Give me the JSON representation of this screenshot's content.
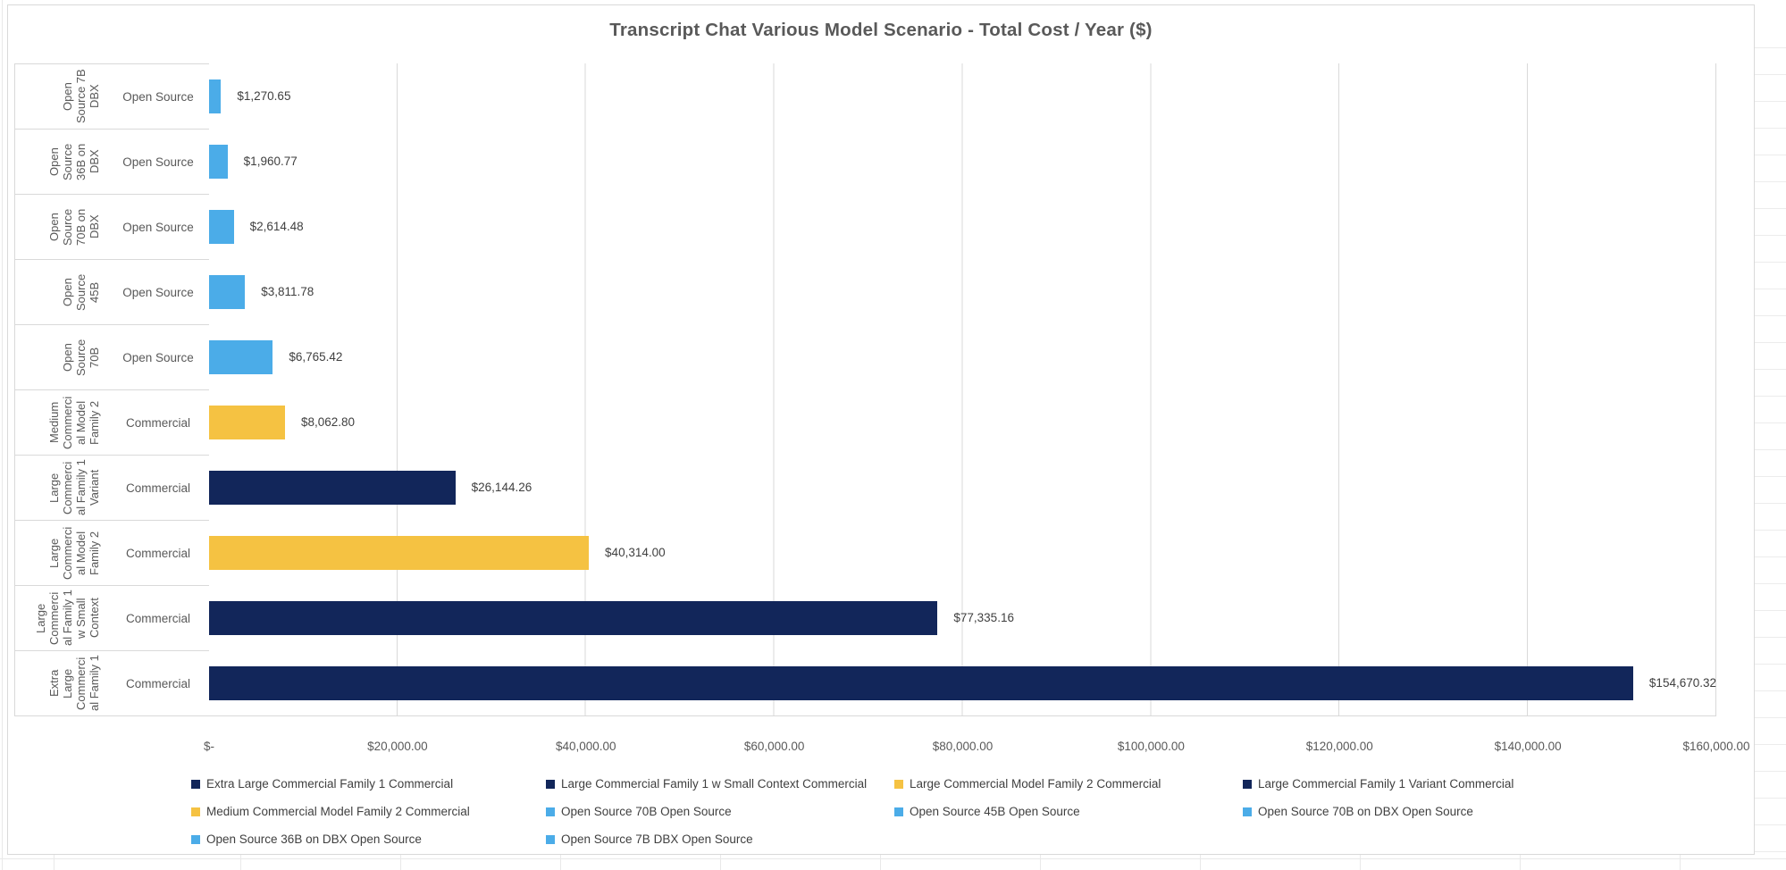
{
  "colors": {
    "navy": "#12265A",
    "gold": "#F5C242",
    "blue": "#4BACE8",
    "plot_grid": "#D9D9D9",
    "worksheet_grid": "#E9E9E9",
    "axis_text": "#595959",
    "value_text": "#3F3F3F"
  },
  "chart_data": {
    "type": "bar",
    "orientation": "horizontal",
    "title": "Transcript Chat Various Model Scenario  - Total Cost / Year ($)",
    "grid": true,
    "legend_position": "bottom",
    "axis": {
      "min": 0,
      "max": 160000,
      "step": 20000,
      "tick_labels": [
        "$-",
        "$20,000.00",
        "$40,000.00",
        "$60,000.00",
        "$80,000.00",
        "$100,000.00",
        "$120,000.00",
        "$140,000.00",
        "$160,000.00"
      ]
    },
    "rows": [
      {
        "model": "Open Source 7B DBX",
        "group": "Open Source",
        "value": 1270.65,
        "value_label": "$1,270.65",
        "color": "#4BACE8"
      },
      {
        "model": "Open Source 36B on DBX",
        "group": "Open Source",
        "value": 1960.77,
        "value_label": "$1,960.77",
        "color": "#4BACE8"
      },
      {
        "model": "Open Source 70B on DBX",
        "group": "Open Source",
        "value": 2614.48,
        "value_label": "$2,614.48",
        "color": "#4BACE8"
      },
      {
        "model": "Open Source 45B",
        "group": "Open Source",
        "value": 3811.78,
        "value_label": "$3,811.78",
        "color": "#4BACE8"
      },
      {
        "model": "Open Source 70B",
        "group": "Open Source",
        "value": 6765.42,
        "value_label": "$6,765.42",
        "color": "#4BACE8"
      },
      {
        "model": "Medium Commercial Model Family 2",
        "group": "Commercial",
        "value": 8062.8,
        "value_label": "$8,062.80",
        "color": "#F5C242"
      },
      {
        "model": "Large Commercial Family 1 Variant",
        "group": "Commercial",
        "value": 26144.26,
        "value_label": "$26,144.26",
        "color": "#12265A"
      },
      {
        "model": "Large Commercial Model Family 2",
        "group": "Commercial",
        "value": 40314.0,
        "value_label": "$40,314.00",
        "color": "#F5C242"
      },
      {
        "model": "Large Commercial Family 1 w Small Context",
        "group": "Commercial",
        "value": 77335.16,
        "value_label": "$77,335.16",
        "color": "#12265A"
      },
      {
        "model": "Extra Large Commercial Family 1",
        "group": "Commercial",
        "value": 154670.32,
        "value_label": "$154,670.32",
        "color": "#12265A"
      }
    ],
    "legend": [
      {
        "label": "Extra Large Commercial Family 1 Commercial",
        "color": "#12265A"
      },
      {
        "label": "Large Commercial Family 1 w Small Context Commercial",
        "color": "#12265A"
      },
      {
        "label": "Large Commercial Model Family 2 Commercial",
        "color": "#F5C242"
      },
      {
        "label": "Large Commercial Family 1 Variant Commercial",
        "color": "#12265A"
      },
      {
        "label": "Medium Commercial Model Family 2 Commercial",
        "color": "#F5C242"
      },
      {
        "label": "Open Source 70B  Open Source",
        "color": "#4BACE8"
      },
      {
        "label": "Open Source 45B  Open Source",
        "color": "#4BACE8"
      },
      {
        "label": "Open Source 70B on DBX Open Source",
        "color": "#4BACE8"
      },
      {
        "label": "Open Source 36B on DBX Open Source",
        "color": "#4BACE8"
      },
      {
        "label": "Open Source 7B DBX Open Source",
        "color": "#4BACE8"
      }
    ]
  }
}
